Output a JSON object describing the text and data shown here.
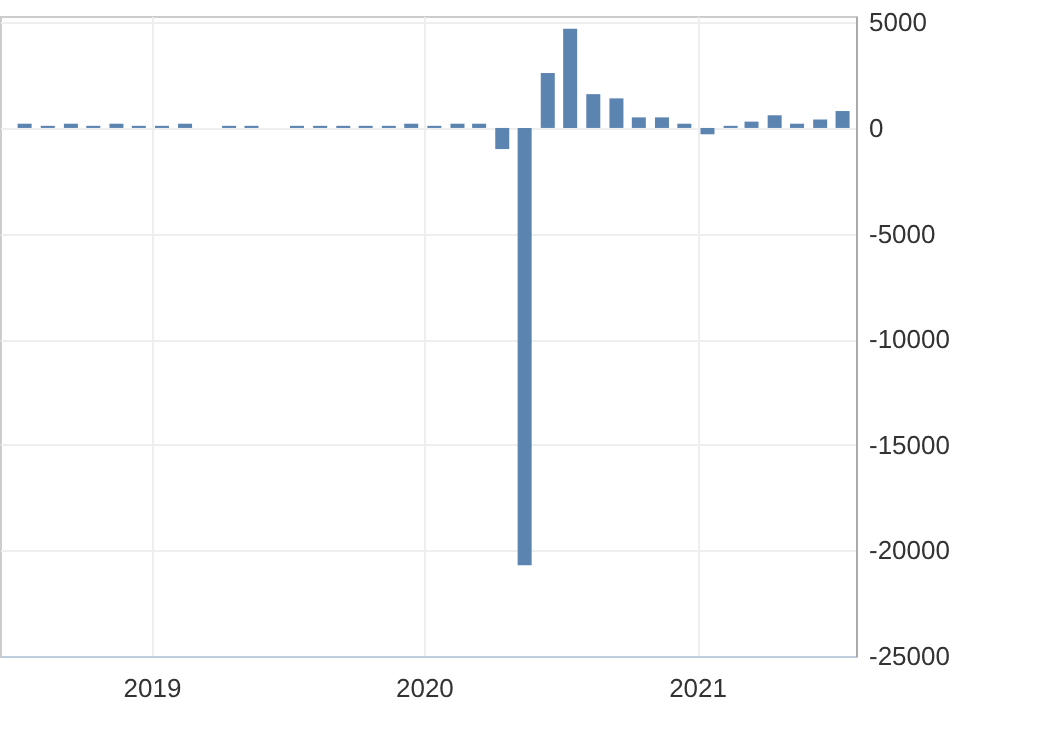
{
  "chart_data": {
    "type": "bar",
    "x": [
      "2018-07-15",
      "2018-08-15",
      "2018-09-15",
      "2018-10-15",
      "2018-11-15",
      "2018-12-15",
      "2019-01-15",
      "2019-02-15",
      "2019-03-15",
      "2019-04-15",
      "2019-05-15",
      "2019-06-15",
      "2019-07-15",
      "2019-08-15",
      "2019-09-15",
      "2019-10-15",
      "2019-11-15",
      "2019-12-15",
      "2020-01-15",
      "2020-02-15",
      "2020-03-15",
      "2020-04-15",
      "2020-05-15",
      "2020-06-15",
      "2020-07-15",
      "2020-08-15",
      "2020-09-15",
      "2020-10-15",
      "2020-11-15",
      "2020-12-15",
      "2021-01-15",
      "2021-02-15",
      "2021-03-15",
      "2021-04-15",
      "2021-05-15",
      "2021-06-15",
      "2021-07-15"
    ],
    "values": [
      200,
      100,
      200,
      100,
      200,
      100,
      100,
      200,
      0,
      100,
      100,
      0,
      100,
      100,
      100,
      100,
      100,
      200,
      100,
      200,
      200,
      -1000,
      -20700,
      2600,
      4700,
      1600,
      1400,
      500,
      500,
      200,
      -300,
      100,
      300,
      600,
      200,
      400,
      800
    ],
    "color": "#5b84b1",
    "xlim": [
      "2018-06-12",
      "2021-08-02"
    ],
    "xticks": [
      "2019",
      "2020",
      "2021"
    ],
    "ylim": [
      -25000,
      5300
    ],
    "yticks": [
      5000,
      0,
      -5000,
      -10000,
      -15000,
      -20000,
      -25000
    ],
    "grid": true
  }
}
